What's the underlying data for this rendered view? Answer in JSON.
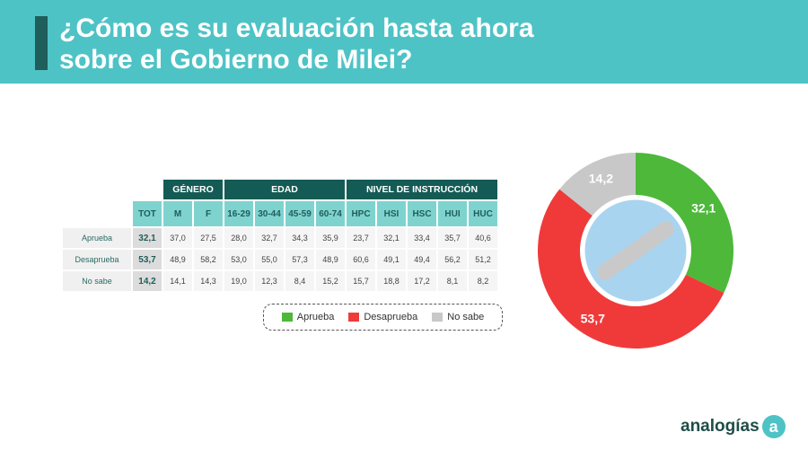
{
  "title": "¿Cómo es su evaluación hasta ahora sobre el Gobierno de Milei?",
  "table": {
    "groups": [
      "GÉNERO",
      "EDAD",
      "NIVEL DE INSTRUCCIÓN"
    ],
    "columns": [
      "TOT",
      "M",
      "F",
      "16-29",
      "30-44",
      "45-59",
      "60-74",
      "HPC",
      "HSI",
      "HSC",
      "HUI",
      "HUC"
    ],
    "rows": [
      {
        "label": "Aprueba",
        "values": [
          "32,1",
          "37,0",
          "27,5",
          "28,0",
          "32,7",
          "34,3",
          "35,9",
          "23,7",
          "32,1",
          "33,4",
          "35,7",
          "40,6"
        ]
      },
      {
        "label": "Desaprueba",
        "values": [
          "53,7",
          "48,9",
          "58,2",
          "53,0",
          "55,0",
          "57,3",
          "48,9",
          "60,6",
          "49,1",
          "49,4",
          "56,2",
          "51,2"
        ]
      },
      {
        "label": "No sabe",
        "values": [
          "14,2",
          "14,1",
          "14,3",
          "19,0",
          "12,3",
          "8,4",
          "15,2",
          "15,7",
          "18,8",
          "17,2",
          "8,1",
          "8,2"
        ]
      }
    ]
  },
  "chart_data": {
    "type": "pie",
    "donut": true,
    "categories": [
      "Aprueba",
      "Desaprueba",
      "No sabe"
    ],
    "values": [
      32.1,
      53.7,
      14.2
    ],
    "labels": [
      "32,1",
      "53,7",
      "14,2"
    ],
    "colors": [
      "#4db83a",
      "#f03a3a",
      "#c8c8c8"
    ],
    "legend": "bottom-left"
  },
  "logo": {
    "text": "analogías",
    "mark": "a"
  }
}
